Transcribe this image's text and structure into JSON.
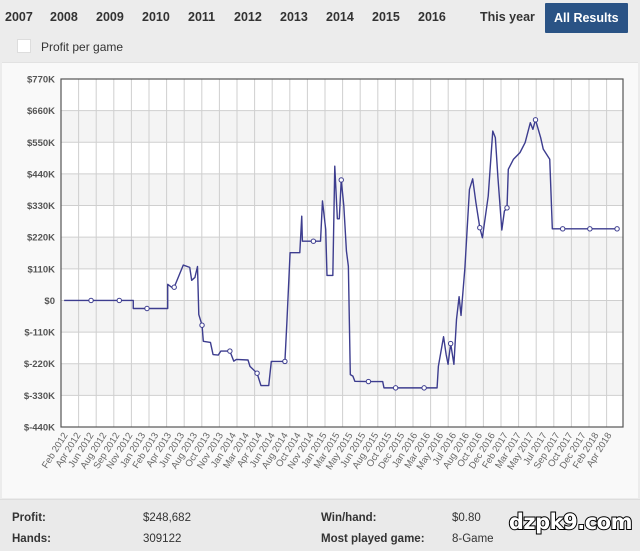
{
  "tabs": [
    "2007",
    "2008",
    "2009",
    "2010",
    "2011",
    "2012",
    "2013",
    "2014",
    "2015",
    "2016",
    "This year",
    "All Results"
  ],
  "active_tab": "All Results",
  "profit_per_game_label": "Profit per game",
  "stats": {
    "profit_label": "Profit:",
    "profit_value": "$248,682",
    "hands_label": "Hands:",
    "hands_value": "309122",
    "winhand_label": "Win/hand:",
    "winhand_value": "$0.80",
    "mostplayed_label": "Most played game:",
    "mostplayed_value": "8-Game"
  },
  "watermark": "dzpk9.com",
  "colors": {
    "accent": "#2a5385",
    "line": "#3d3d8f"
  },
  "chart_data": {
    "type": "line",
    "title": "",
    "ylabel": "Profit",
    "ylim": [
      -440,
      770
    ],
    "y_unit": "K USD",
    "yticks": [
      "$770K",
      "$660K",
      "$550K",
      "$440K",
      "$330K",
      "$220K",
      "$110K",
      "$0",
      "$-110K",
      "$-220K",
      "$-330K",
      "$-440K"
    ],
    "ytick_values": [
      770,
      660,
      550,
      440,
      330,
      220,
      110,
      0,
      -110,
      -220,
      -330,
      -440
    ],
    "xticks": [
      "Feb 2012",
      "Apr 2012",
      "Jun 2012",
      "Aug 2012",
      "Sep 2012",
      "Nov 2012",
      "Jan 2013",
      "Feb 2013",
      "Apr 2013",
      "Jun 2013",
      "Aug 2013",
      "Oct 2013",
      "Nov 2013",
      "Jan 2014",
      "Mar 2014",
      "Apr 2014",
      "Jun 2014",
      "Aug 2014",
      "Oct 2014",
      "Nov 2014",
      "Jan 2015",
      "Mar 2015",
      "May 2015",
      "Jun 2015",
      "Aug 2015",
      "Oct 2015",
      "Dec 2015",
      "Jan 2016",
      "Mar 2016",
      "May 2016",
      "Jul 2016",
      "Aug 2016",
      "Oct 2016",
      "Dec 2016",
      "Feb 2017",
      "Mar 2017",
      "May 2017",
      "Jul 2017",
      "Sep 2017",
      "Oct 2017",
      "Dec 2017",
      "Feb 2018",
      "Apr 2018"
    ],
    "x_note": "x values are positions on the category tick index axis",
    "grid": true,
    "series": [
      {
        "name": "Profit",
        "points": [
          [
            -0.3,
            0
          ],
          [
            1.78,
            0
          ],
          [
            3.96,
            0
          ],
          [
            5.04,
            0
          ],
          [
            5.04,
            -28
          ],
          [
            6.1,
            -28
          ],
          [
            7.7,
            -28
          ],
          [
            7.7,
            56
          ],
          [
            8.0,
            46
          ],
          [
            8.2,
            46
          ],
          [
            8.9,
            123
          ],
          [
            9.4,
            115
          ],
          [
            9.55,
            70
          ],
          [
            9.8,
            80
          ],
          [
            10.0,
            118
          ],
          [
            10.1,
            -49
          ],
          [
            10.35,
            -86
          ],
          [
            10.45,
            -142
          ],
          [
            11.0,
            -146
          ],
          [
            11.2,
            -188
          ],
          [
            11.6,
            -190
          ],
          [
            11.8,
            -176
          ],
          [
            12.5,
            -176
          ],
          [
            12.8,
            -211
          ],
          [
            13.0,
            -205
          ],
          [
            13.9,
            -207
          ],
          [
            14.05,
            -229
          ],
          [
            14.6,
            -253
          ],
          [
            14.9,
            -296
          ],
          [
            15.5,
            -296
          ],
          [
            15.7,
            -212
          ],
          [
            16.75,
            -212
          ],
          [
            16.9,
            -78
          ],
          [
            17.15,
            166
          ],
          [
            17.9,
            166
          ],
          [
            18.05,
            293
          ],
          [
            18.1,
            206
          ],
          [
            18.95,
            206
          ],
          [
            19.5,
            206
          ],
          [
            19.65,
            346
          ],
          [
            19.9,
            247
          ],
          [
            20.0,
            87
          ],
          [
            20.45,
            87
          ],
          [
            20.6,
            467
          ],
          [
            20.8,
            284
          ],
          [
            20.95,
            284
          ],
          [
            21.1,
            419
          ],
          [
            21.3,
            328
          ],
          [
            21.5,
            172
          ],
          [
            21.65,
            119
          ],
          [
            21.8,
            -258
          ],
          [
            22.0,
            -263
          ],
          [
            22.15,
            -281
          ],
          [
            23.2,
            -282
          ],
          [
            24.3,
            -282
          ],
          [
            24.4,
            -304
          ],
          [
            25.3,
            -304
          ],
          [
            27.5,
            -304
          ],
          [
            28.5,
            -304
          ],
          [
            28.6,
            -229
          ],
          [
            29.0,
            -126
          ],
          [
            29.2,
            -188
          ],
          [
            29.35,
            -222
          ],
          [
            29.55,
            -150
          ],
          [
            29.8,
            -222
          ],
          [
            30.0,
            -66
          ],
          [
            30.2,
            13
          ],
          [
            30.35,
            -52
          ],
          [
            30.65,
            114
          ],
          [
            31.0,
            386
          ],
          [
            31.25,
            423
          ],
          [
            31.5,
            340
          ],
          [
            31.8,
            253
          ],
          [
            32.0,
            218
          ],
          [
            32.45,
            363
          ],
          [
            32.8,
            589
          ],
          [
            33.0,
            566
          ],
          [
            33.2,
            427
          ],
          [
            33.5,
            245
          ],
          [
            33.7,
            311
          ],
          [
            33.9,
            322
          ],
          [
            34.0,
            456
          ],
          [
            34.4,
            491
          ],
          [
            34.9,
            514
          ],
          [
            35.3,
            549
          ],
          [
            35.7,
            618
          ],
          [
            35.9,
            595
          ],
          [
            36.1,
            628
          ],
          [
            36.5,
            566
          ],
          [
            36.7,
            526
          ],
          [
            37.2,
            491
          ],
          [
            37.4,
            249
          ],
          [
            38.2,
            249
          ],
          [
            40.3,
            249
          ],
          [
            42.4,
            249
          ]
        ],
        "markers": [
          [
            1.78,
            0
          ],
          [
            3.96,
            0
          ],
          [
            6.1,
            -28
          ],
          [
            8.2,
            46
          ],
          [
            10.35,
            -86
          ],
          [
            12.5,
            -176
          ],
          [
            14.6,
            -253
          ],
          [
            16.75,
            -212
          ],
          [
            18.95,
            206
          ],
          [
            21.1,
            419
          ],
          [
            23.2,
            -282
          ],
          [
            25.3,
            -304
          ],
          [
            27.5,
            -304
          ],
          [
            29.55,
            -150
          ],
          [
            31.8,
            253
          ],
          [
            33.9,
            322
          ],
          [
            36.1,
            628
          ],
          [
            38.2,
            249
          ],
          [
            40.3,
            249
          ],
          [
            42.4,
            249
          ]
        ]
      }
    ]
  }
}
